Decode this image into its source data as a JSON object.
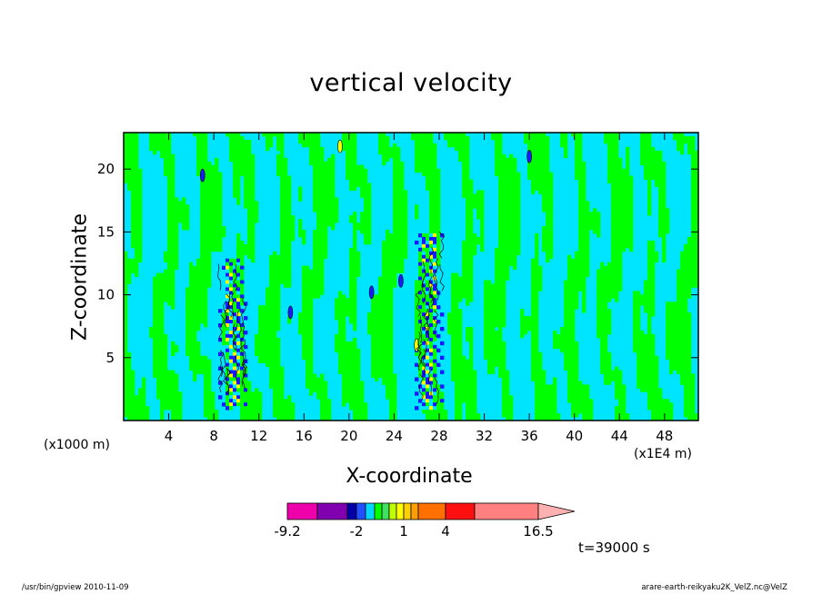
{
  "chart_data": {
    "type": "heatmap",
    "title": "vertical velocity",
    "xlabel": "X-coordinate",
    "ylabel": "Z-coordinate",
    "x_unit_left": "(x1000 m)",
    "x_unit_right": "(x1E4 m)",
    "xlim": [
      0,
      51
    ],
    "ylim": [
      0,
      22.9
    ],
    "xticks": [
      4,
      8,
      12,
      16,
      20,
      24,
      28,
      32,
      36,
      40,
      44,
      48
    ],
    "yticks": [
      5,
      10,
      15,
      20
    ],
    "grid": false,
    "colors": {
      "positive_weak": "#00ff00",
      "negative_weak": "#00e5ff",
      "deep_negative": "#1a1aff",
      "strong_positive": "#ffff00",
      "contour": "#000000",
      "cbar_tip": "#ffb0b0"
    },
    "colorbar": {
      "position": "bottom",
      "levels": [
        -9.2,
        -6.7,
        -4.2,
        -2,
        -1.5,
        -1,
        -0.5,
        0,
        0.5,
        1,
        2,
        3,
        4,
        6,
        9,
        16.5
      ],
      "colors": [
        "#ee00aa",
        "#8000b0",
        "#0000aa",
        "#2050ff",
        "#00d8ff",
        "#00ff00",
        "#40e060",
        "#c0ff00",
        "#ffff00",
        "#ffd000",
        "#ffa000",
        "#ff7000",
        "#ff1010",
        "#ff8080",
        "#ffb0b0"
      ],
      "labels": [
        {
          "value": -9.2,
          "text": "-9.2"
        },
        {
          "value": -2,
          "text": "-2"
        },
        {
          "value": 1,
          "text": "1"
        },
        {
          "value": 4,
          "text": "4"
        },
        {
          "value": 16.5,
          "text": "16.5"
        }
      ]
    },
    "features": [
      {
        "name": "convective-column-left",
        "x_center": 9.6,
        "z_range": [
          1,
          13
        ],
        "pattern": "alternating strong updraft/downdraft"
      },
      {
        "name": "convective-column-right",
        "x_center": 27.2,
        "z_range": [
          1,
          15
        ],
        "pattern": "alternating strong updraft/downdraft"
      }
    ],
    "time_label": "t=39000 s"
  },
  "footer": {
    "left": "/usr/bin/gpview   2010-11-09",
    "right": "arare-earth-reikyaku2K_VelZ.nc@VelZ"
  }
}
